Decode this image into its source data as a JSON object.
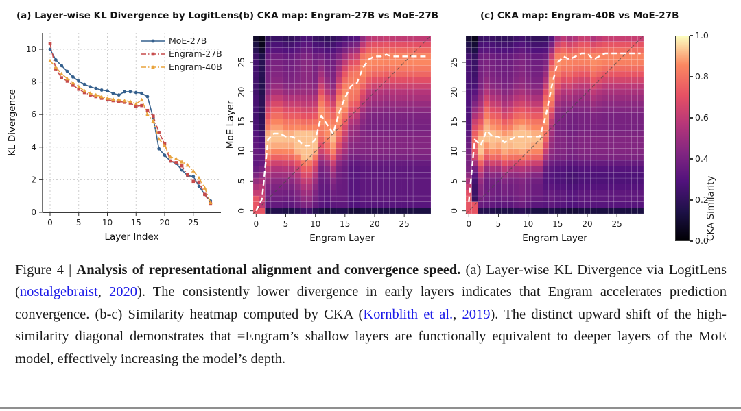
{
  "figure_label": "Figure 4",
  "colors": {
    "moe_blue": "#35608d",
    "engram27_red": "#c64b4b",
    "engram40_orange": "#e8a33d",
    "link_blue": "#1b1ae8",
    "grid_gray": "#c9c9c9",
    "spine_gray": "#3a3a3a",
    "white_line": "#ffffff",
    "diag_gray": "#4a4a4a"
  },
  "magma_stops": [
    [
      0,
      "#000004"
    ],
    [
      0.14,
      "#1d1147"
    ],
    [
      0.29,
      "#51127c"
    ],
    [
      0.43,
      "#822681"
    ],
    [
      0.57,
      "#b63679"
    ],
    [
      0.71,
      "#e65164"
    ],
    [
      0.86,
      "#fb8861"
    ],
    [
      1,
      "#fcfdbf"
    ]
  ],
  "colorbar": {
    "label": "CKA Similarity",
    "ticks_top_to_bottom": [
      "1.0",
      "0.8",
      "0.6",
      "0.4",
      "0.2",
      "0.0"
    ]
  },
  "chart_data": [
    {
      "id": "a",
      "type": "line",
      "title": "(a) Layer-wise KL Divergence by LogitLens",
      "xlabel": "Layer Index",
      "ylabel": "KL Divergence",
      "xticks": [
        0,
        5,
        10,
        15,
        20,
        25
      ],
      "yticks": [
        0,
        2,
        4,
        6,
        8,
        10
      ],
      "xlim": [
        -1,
        29
      ],
      "ylim": [
        0,
        10.8
      ],
      "grid": true,
      "legend_position": "upper right",
      "x_is_index": true,
      "series": [
        {
          "name": "MoE-27B",
          "color": "#35608d",
          "marker": "circle",
          "linestyle": "solid",
          "values": [
            10.0,
            9.35,
            9.0,
            8.65,
            8.3,
            8.05,
            7.85,
            7.7,
            7.6,
            7.5,
            7.45,
            7.3,
            7.2,
            7.4,
            7.4,
            7.35,
            7.3,
            7.1,
            5.8,
            3.9,
            3.5,
            3.15,
            3.0,
            2.6,
            2.25,
            2.2,
            1.6,
            1.1,
            0.7
          ]
        },
        {
          "name": "Engram-27B",
          "color": "#c64b4b",
          "marker": "square",
          "linestyle": "dashdot",
          "values": [
            10.35,
            8.8,
            8.25,
            8.05,
            7.8,
            7.55,
            7.35,
            7.2,
            7.1,
            7.0,
            6.9,
            6.85,
            6.8,
            6.75,
            6.7,
            6.5,
            6.55,
            6.25,
            5.9,
            4.9,
            4.2,
            3.15,
            3.05,
            2.85,
            2.3,
            1.9,
            1.85,
            1.1,
            0.55
          ]
        },
        {
          "name": "Engram-40B",
          "color": "#e8a33d",
          "marker": "triangle",
          "linestyle": "dashdot",
          "values": [
            9.3,
            8.9,
            8.5,
            8.2,
            7.95,
            7.7,
            7.45,
            7.3,
            7.2,
            7.1,
            7.0,
            6.95,
            6.9,
            6.85,
            6.8,
            6.65,
            6.9,
            6.0,
            5.6,
            4.5,
            4.1,
            3.4,
            3.3,
            3.1,
            2.9,
            2.55,
            2.1,
            1.5,
            0.6
          ]
        }
      ]
    },
    {
      "id": "b",
      "type": "heatmap",
      "title": "(b) CKA map: Engram-27B vs MoE-27B",
      "xlabel": "Engram Layer",
      "ylabel": "MoE Layer",
      "n": 30,
      "xticks": [
        0,
        5,
        10,
        15,
        20,
        25
      ],
      "yticks": [
        0,
        5,
        10,
        15,
        20,
        25
      ],
      "colormap": "magma",
      "vmin": 0,
      "vmax": 1,
      "diagonal_line": true,
      "argmax_line": [
        0,
        2,
        12,
        13,
        13,
        12.5,
        12.5,
        12,
        11,
        11,
        12,
        16,
        14.5,
        13,
        16.5,
        19,
        21,
        21.5,
        24,
        25.5,
        26,
        26,
        26.3,
        26,
        26,
        26,
        26,
        26,
        26,
        26
      ],
      "synthesis": {
        "base": 0.33,
        "peak": 0.5,
        "sigma": 4.5,
        "row_adj": [
          -0.2,
          -0.02,
          0,
          0,
          0,
          0,
          0,
          0,
          0.02,
          0.07,
          0.1,
          0.1,
          0.1,
          0.08,
          0.05,
          0.05,
          0.04,
          0.05,
          0.05,
          0.05,
          0.03,
          0.03,
          0.03,
          0.04,
          0.04,
          0.04,
          0.02,
          -0.04,
          -0.08,
          -0.13
        ],
        "col_adj": [
          -0.12,
          -0.2,
          0,
          0.02,
          0.02,
          0,
          0,
          0.03,
          0.07,
          0.07,
          0.02,
          0,
          -0.02,
          0,
          0.02,
          0.02,
          -0.02,
          -0.02,
          0,
          0,
          0,
          0,
          0,
          0,
          0,
          0,
          0,
          0,
          0,
          0
        ],
        "bright_cells": [
          [
            0,
            0
          ],
          [
            1,
            0
          ],
          [
            2,
            0
          ],
          [
            0,
            1
          ]
        ],
        "bright_value": 0.72
      }
    },
    {
      "id": "c",
      "type": "heatmap",
      "title": "(c) CKA map: Engram-40B vs MoE-27B",
      "xlabel": "Engram Layer",
      "ylabel": "",
      "n": 30,
      "xticks": [
        0,
        5,
        10,
        15,
        20,
        25
      ],
      "yticks": [
        0,
        5,
        10,
        15,
        20,
        25
      ],
      "colormap": "magma",
      "vmin": 0,
      "vmax": 1,
      "diagonal_line": true,
      "argmax_line": [
        1.5,
        12,
        11,
        13.5,
        12.5,
        12.5,
        11.5,
        12,
        12.5,
        12.5,
        12.5,
        12.5,
        12.5,
        16,
        21,
        25,
        26,
        25.5,
        26,
        26.5,
        26.5,
        25.5,
        26,
        26.5,
        26.5,
        26.5,
        26.5,
        26.5,
        26.5,
        26.5
      ],
      "synthesis": {
        "base": 0.33,
        "peak": 0.5,
        "sigma": 4.2,
        "row_adj": [
          -0.2,
          -0.02,
          0,
          0,
          -0.03,
          -0.05,
          -0.05,
          -0.03,
          0.02,
          0.08,
          0.1,
          0.1,
          0.1,
          0.08,
          0.06,
          0.06,
          0.05,
          0.06,
          0.06,
          0.06,
          0.05,
          0.04,
          0.04,
          0.04,
          0.04,
          0.04,
          0.02,
          -0.04,
          -0.08,
          -0.13
        ],
        "col_adj": [
          -0.1,
          -0.15,
          0.02,
          0.03,
          0.02,
          0,
          0,
          0,
          0.03,
          0.05,
          0.02,
          0,
          0,
          0,
          0.02,
          0,
          0,
          -0.02,
          -0.02,
          0,
          0,
          0,
          0,
          0,
          0,
          0,
          0,
          0,
          0,
          0
        ],
        "bright_cells": [
          [
            0,
            0
          ],
          [
            1,
            0
          ],
          [
            0,
            1
          ],
          [
            1,
            1
          ]
        ],
        "bright_value": 0.72
      }
    }
  ],
  "caption": {
    "runs": [
      {
        "text": "Figure 4 | ",
        "style": "normal"
      },
      {
        "text": "Analysis of representational alignment and convergence speed.",
        "style": "bold"
      },
      {
        "text": " (a) Layer-wise KL Divergence via LogitLens (",
        "style": "normal"
      },
      {
        "text": "nostalgebraist",
        "style": "link"
      },
      {
        "text": ", ",
        "style": "normal"
      },
      {
        "text": "2020",
        "style": "link"
      },
      {
        "text": "). The consistently lower divergence in early layers indicates that Engram accelerates prediction convergence. (b-c) Similarity heatmap computed by CKA (",
        "style": "normal"
      },
      {
        "text": "Kornblith et al.",
        "style": "link"
      },
      {
        "text": ", ",
        "style": "normal"
      },
      {
        "text": "2019",
        "style": "link"
      },
      {
        "text": "). The distinct upward shift of the high-similarity diagonal demonstrates that =Engram’s shallow layers are functionally equivalent to deeper layers of the MoE model, effectively increasing the model’s depth.",
        "style": "normal"
      }
    ]
  }
}
